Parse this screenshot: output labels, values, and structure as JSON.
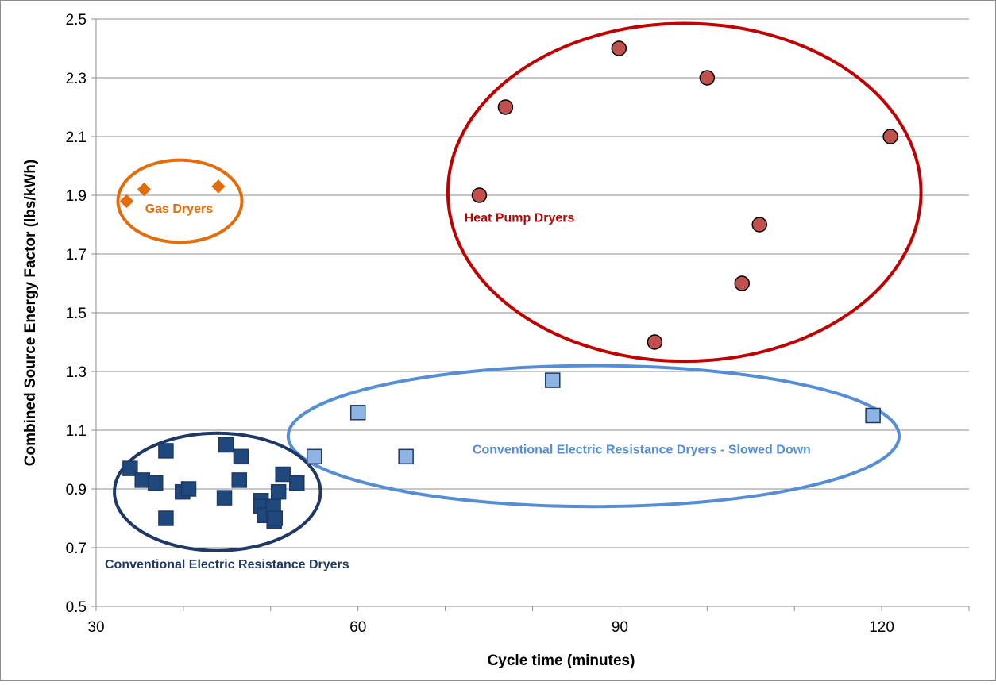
{
  "chart_data": {
    "type": "scatter",
    "xlabel": "Cycle time (minutes)",
    "ylabel": "Combined Source Energy Factor (lbs/kWh)",
    "xlim": [
      30,
      130
    ],
    "ylim": [
      0.5,
      2.5
    ],
    "xticks": [
      30,
      60,
      90,
      120
    ],
    "yticks": [
      0.5,
      0.7,
      0.9,
      1.1,
      1.3,
      1.5,
      1.7,
      1.9,
      2.1,
      2.3,
      2.5
    ],
    "x_tick_labels": [
      "30",
      "60",
      "90",
      "120"
    ],
    "y_tick_labels": [
      "0.5",
      "0.7",
      "0.9",
      "1.1",
      "1.3",
      "1.5",
      "1.7",
      "1.9",
      "2.1",
      "2.3",
      "2.5"
    ],
    "grid": "horizontal",
    "legend": "none",
    "series": [
      {
        "marker": "diamond",
        "color": "#e46c0a",
        "points": [
          [
            33.5,
            1.88
          ],
          [
            35.5,
            1.92
          ],
          [
            44.0,
            1.93
          ]
        ]
      },
      {
        "marker": "circle",
        "color": "#c0504d",
        "points": [
          [
            73.9,
            1.9
          ],
          [
            76.9,
            2.2
          ],
          [
            89.9,
            2.4
          ],
          [
            100.0,
            2.3
          ],
          [
            121.0,
            2.1
          ],
          [
            106.0,
            1.8
          ],
          [
            104.0,
            1.6
          ],
          [
            94.0,
            1.4
          ]
        ]
      },
      {
        "marker": "square",
        "color": "#8db4e2",
        "points": [
          [
            55.0,
            1.01
          ],
          [
            60.0,
            1.16
          ],
          [
            65.5,
            1.01
          ],
          [
            82.3,
            1.27
          ],
          [
            119.0,
            1.15
          ]
        ]
      },
      {
        "marker": "square",
        "color": "#1f497d",
        "points": [
          [
            33.9,
            0.97
          ],
          [
            35.3,
            0.93
          ],
          [
            36.8,
            0.92
          ],
          [
            38.0,
            1.03
          ],
          [
            38.0,
            0.8
          ],
          [
            39.9,
            0.89
          ],
          [
            40.6,
            0.9
          ],
          [
            44.7,
            0.87
          ],
          [
            44.9,
            1.05
          ],
          [
            46.4,
            0.93
          ],
          [
            46.6,
            1.01
          ],
          [
            48.9,
            0.86
          ],
          [
            48.9,
            0.84
          ],
          [
            49.3,
            0.81
          ],
          [
            50.3,
            0.84
          ],
          [
            50.4,
            0.79
          ],
          [
            50.5,
            0.8
          ],
          [
            50.9,
            0.89
          ],
          [
            51.4,
            0.95
          ],
          [
            53.0,
            0.92
          ]
        ]
      }
    ],
    "annotations": [
      {
        "text": "Gas Dryers",
        "color": "#e46c0a",
        "x": 39.5,
        "y": 1.84
      },
      {
        "text": "Heat Pump Dryers",
        "color": "#c00000",
        "x": 78.5,
        "y": 1.81
      },
      {
        "text": "Conventional Electric Resistance Dryers - Slowed Down",
        "color": "#558ed5",
        "x": 92.5,
        "y": 1.02
      },
      {
        "text": "Conventional Electric Resistance Dryers",
        "color": "#1f3864",
        "x": 45.0,
        "y": 0.63
      }
    ],
    "groups": [
      {
        "name": "gas-dryers",
        "color": "#e46c0a",
        "cx": 39.6,
        "cy": 1.88,
        "rx": 7.1,
        "ry": 0.14
      },
      {
        "name": "heat-pump-dryers",
        "color": "#c00000",
        "cx": 97.4,
        "cy": 1.91,
        "rx": 27.1,
        "ry": 0.575
      },
      {
        "name": "slowed-down-dryers",
        "color": "#558ed5",
        "cx": 87.0,
        "cy": 1.08,
        "rx": 35.0,
        "ry": 0.24
      },
      {
        "name": "conventional-dryers",
        "color": "#1f3864",
        "cx": 43.9,
        "cy": 0.89,
        "rx": 11.8,
        "ry": 0.2
      }
    ]
  }
}
